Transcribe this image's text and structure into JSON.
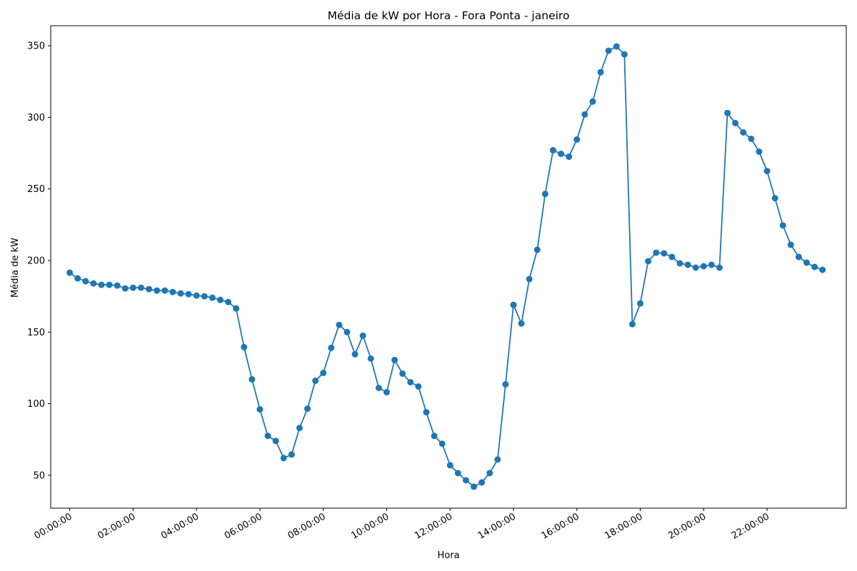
{
  "chart_data": {
    "type": "line",
    "title": "Média de kW por Hora - Fora Ponta - janeiro",
    "xlabel": "Hora",
    "ylabel": "Média de kW",
    "ylim": [
      27,
      364
    ],
    "xlim": [
      -0.6,
      24.5
    ],
    "yticks": [
      50,
      100,
      150,
      200,
      250,
      300,
      350
    ],
    "xticks": [
      {
        "value": 0,
        "label": "00:00:00"
      },
      {
        "value": 2,
        "label": "02:00:00"
      },
      {
        "value": 4,
        "label": "04:00:00"
      },
      {
        "value": 6,
        "label": "06:00:00"
      },
      {
        "value": 8,
        "label": "08:00:00"
      },
      {
        "value": 10,
        "label": "10:00:00"
      },
      {
        "value": 12,
        "label": "12:00:00"
      },
      {
        "value": 14,
        "label": "14:00:00"
      },
      {
        "value": 16,
        "label": "16:00:00"
      },
      {
        "value": 18,
        "label": "18:00:00"
      },
      {
        "value": 20,
        "label": "20:00:00"
      },
      {
        "value": 22,
        "label": "22:00:00"
      }
    ],
    "series": [
      {
        "name": "Média de kW",
        "color": "#1f77b4",
        "x": [
          0,
          0.25,
          0.5,
          0.75,
          1,
          1.25,
          1.5,
          1.75,
          2,
          2.25,
          2.5,
          2.75,
          3,
          3.25,
          3.5,
          3.75,
          4,
          4.25,
          4.5,
          4.75,
          5,
          5.25,
          5.5,
          5.75,
          6,
          6.25,
          6.5,
          6.75,
          7,
          7.25,
          7.5,
          7.75,
          8,
          8.25,
          8.5,
          8.75,
          9,
          9.25,
          9.5,
          9.75,
          10,
          10.25,
          10.5,
          10.75,
          11,
          11.25,
          11.5,
          11.75,
          12,
          12.25,
          12.5,
          12.75,
          13,
          13.25,
          13.5,
          13.75,
          14,
          14.25,
          14.5,
          14.75,
          15,
          15.25,
          15.5,
          15.75,
          16,
          16.25,
          16.5,
          16.75,
          17,
          17.25,
          17.5,
          17.75,
          18,
          18.25,
          18.5,
          18.75,
          19,
          19.25,
          19.5,
          19.75,
          20,
          20.25,
          20.5,
          20.75,
          21,
          21.25,
          21.5,
          21.75,
          22,
          22.25,
          22.5,
          22.75,
          23,
          23.25,
          23.5,
          23.75
        ],
        "values": [
          191.5,
          187.5,
          185.5,
          184,
          183,
          183,
          182.5,
          180.5,
          181,
          181,
          180,
          179,
          179,
          178,
          177,
          176.5,
          175.5,
          175,
          174,
          172.5,
          171,
          166.5,
          139.5,
          117,
          96,
          77.5,
          74,
          62,
          64.5,
          83,
          96.5,
          116,
          121.5,
          139,
          155,
          150,
          134.5,
          147.5,
          131.5,
          111,
          108,
          130.5,
          121,
          115,
          112,
          94,
          77.5,
          72,
          57,
          51.5,
          46.5,
          42,
          45,
          51.5,
          61,
          113.5,
          169,
          156,
          187,
          207.5,
          246.5,
          277,
          274.5,
          272.5,
          284.5,
          302,
          311,
          331.5,
          346.5,
          349.5,
          344,
          155.5,
          170,
          199.5,
          205.5,
          205,
          202.5,
          198,
          197,
          195,
          196,
          197,
          195,
          303,
          296,
          289.5,
          285,
          276,
          262.5,
          243.5,
          224.5,
          211,
          202.5,
          198.5,
          195.5,
          193.5
        ]
      }
    ]
  }
}
